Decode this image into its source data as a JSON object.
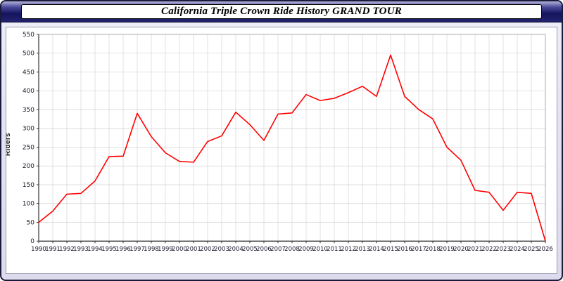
{
  "window": {
    "title": "California Triple Crown Ride History GRAND TOUR"
  },
  "chart_data": {
    "type": "line",
    "title": "California Triple Crown Ride History GRAND TOUR",
    "xlabel": "",
    "ylabel": "Riders",
    "ylim": [
      0,
      550
    ],
    "ytick_step": 50,
    "grid": true,
    "legend_position": "none",
    "line_color": "#ff0000",
    "grid_color": "#d4d4d4",
    "axis_color": "#333333",
    "tick_label_color": "#1a1a2e",
    "x": [
      1990,
      1991,
      1992,
      1993,
      1994,
      1995,
      1996,
      1997,
      1998,
      1999,
      2000,
      2001,
      2002,
      2003,
      2004,
      2005,
      2006,
      2007,
      2008,
      2009,
      2010,
      2011,
      2012,
      2013,
      2014,
      2015,
      2016,
      2017,
      2018,
      2019,
      2020,
      2021,
      2022,
      2023,
      2024,
      2025,
      2026
    ],
    "values": [
      50,
      80,
      125,
      127,
      160,
      225,
      226,
      340,
      278,
      235,
      212,
      210,
      265,
      280,
      343,
      310,
      268,
      338,
      341,
      390,
      374,
      380,
      395,
      412,
      385,
      495,
      385,
      350,
      325,
      250,
      215,
      135,
      130,
      82,
      130,
      127,
      0
    ]
  }
}
